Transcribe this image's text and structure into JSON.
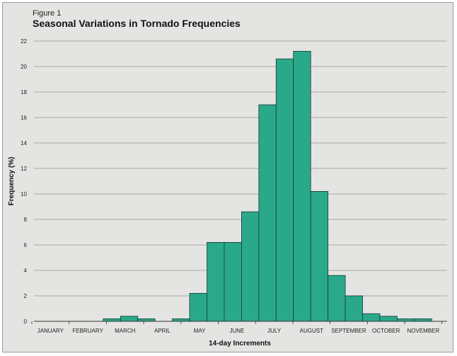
{
  "figure": {
    "label": "Figure 1",
    "title": "Seasonal Variations in Tornado Frequencies"
  },
  "colors": {
    "background": "#e4e4e2",
    "bar": "#2aa98a",
    "bar_stroke": "#1c3a33",
    "grid": "#6f6f6f"
  },
  "chart_data": {
    "type": "bar",
    "title": "Seasonal Variations in Tornado Frequencies",
    "xlabel": "14-day Increments",
    "ylabel": "Frequency (%)",
    "ylim": [
      0,
      22
    ],
    "yticks": [
      0,
      2,
      4,
      6,
      8,
      10,
      12,
      14,
      16,
      18,
      20,
      22
    ],
    "grid": true,
    "month_labels": [
      "JANUARY",
      "FEBRUARY",
      "MARCH",
      "APRIL",
      "MAY",
      "JUNE",
      "JULY",
      "AUGUST",
      "SEPTEMBER",
      "OCTOBER",
      "NOVEMBER"
    ],
    "values": [
      0,
      0,
      0,
      0,
      0.2,
      0.4,
      0.2,
      0,
      0.2,
      2.2,
      6.2,
      6.2,
      8.6,
      17,
      20.6,
      21.2,
      10.2,
      3.6,
      2,
      0.6,
      0.4,
      0.2,
      0.2,
      0,
      0
    ]
  }
}
